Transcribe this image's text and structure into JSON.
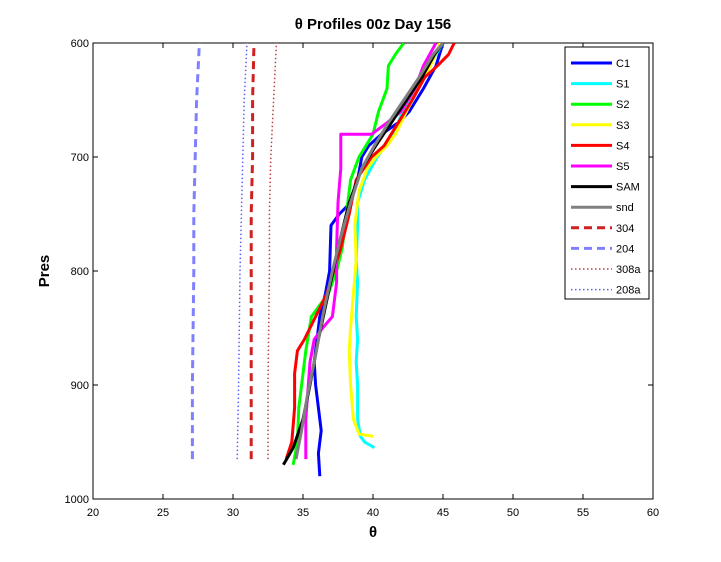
{
  "chart_data": {
    "type": "line",
    "title": "θ Profiles 00z Day 156",
    "xlabel": "θ",
    "ylabel": "Pres",
    "xlim": [
      20,
      60
    ],
    "ylim": [
      1000,
      600
    ],
    "y_reversed": true,
    "x_ticks": [
      20,
      25,
      30,
      35,
      40,
      45,
      50,
      55,
      60
    ],
    "y_ticks": [
      600,
      700,
      800,
      900,
      1000
    ],
    "grid": false,
    "legend_position": "top-right",
    "series": [
      {
        "name": "C1",
        "color": "#0000ff",
        "style": "solid",
        "x": [
          36.2,
          36.1,
          36.3,
          35.9,
          35.8,
          36.0,
          36.2,
          36.6,
          36.9,
          37.0,
          37.6,
          38.4,
          38.9,
          39.2,
          39.7,
          40.6,
          41.8,
          42.6,
          43.6,
          44.5,
          45.0
        ],
        "y": [
          980,
          960,
          940,
          900,
          880,
          860,
          840,
          820,
          800,
          760,
          750,
          740,
          720,
          700,
          690,
          680,
          670,
          660,
          640,
          620,
          600
        ]
      },
      {
        "name": "S1",
        "color": "#00ffff",
        "style": "solid",
        "x": [
          40.1,
          39.4,
          39.1,
          38.9,
          38.9,
          38.8,
          38.9,
          38.8,
          38.9,
          38.8,
          38.9,
          38.9,
          39.4,
          40.3,
          41.5,
          42.1,
          43.0,
          44.0,
          45.0
        ],
        "y": [
          955,
          950,
          945,
          930,
          900,
          880,
          860,
          840,
          810,
          790,
          760,
          740,
          720,
          700,
          680,
          660,
          640,
          620,
          600
        ]
      },
      {
        "name": "S2",
        "color": "#00ff00",
        "style": "solid",
        "x": [
          34.3,
          34.6,
          34.7,
          34.9,
          35.2,
          35.6,
          36.2,
          36.8,
          37.4,
          37.8,
          38.1,
          38.4,
          39.0,
          40.0,
          40.4,
          41.0,
          41.1,
          41.6,
          42.2
        ],
        "y": [
          970,
          950,
          920,
          900,
          870,
          840,
          830,
          820,
          800,
          780,
          750,
          720,
          700,
          680,
          660,
          640,
          620,
          610,
          600
        ]
      },
      {
        "name": "S3",
        "color": "#ffff00",
        "style": "solid",
        "x": [
          40.0,
          39.0,
          38.6,
          38.4,
          38.3,
          38.4,
          38.6,
          38.8,
          38.7,
          39.0,
          39.6,
          40.2,
          41.0,
          41.6,
          42.4,
          43.2,
          44.1,
          44.8
        ],
        "y": [
          945,
          943,
          930,
          900,
          870,
          850,
          820,
          790,
          760,
          730,
          710,
          700,
          690,
          680,
          660,
          640,
          620,
          600
        ]
      },
      {
        "name": "S4",
        "color": "#ff0000",
        "style": "solid",
        "x": [
          33.8,
          34.2,
          34.4,
          34.4,
          34.6,
          35.1,
          35.9,
          36.7,
          37.2,
          37.7,
          38.3,
          38.8,
          39.9,
          40.8,
          41.8,
          42.8,
          43.7,
          44.6,
          45.4,
          45.8
        ],
        "y": [
          965,
          950,
          920,
          890,
          870,
          860,
          840,
          820,
          800,
          780,
          750,
          720,
          700,
          690,
          670,
          650,
          630,
          620,
          610,
          600
        ]
      },
      {
        "name": "S5",
        "color": "#ff00ff",
        "style": "solid",
        "x": [
          35.2,
          35.2,
          35.5,
          35.8,
          36.4,
          37.1,
          37.4,
          37.4,
          37.5,
          37.7,
          37.7,
          38.3,
          39.9,
          41.0,
          42.0,
          43.0,
          43.6,
          44.5
        ],
        "y": [
          965,
          930,
          880,
          860,
          850,
          840,
          810,
          780,
          740,
          710,
          680,
          680,
          680,
          670,
          660,
          640,
          620,
          600
        ]
      },
      {
        "name": "SAM",
        "color": "#000000",
        "style": "solid",
        "x": [
          33.6,
          34.3,
          35.0,
          35.5,
          36.1,
          36.8,
          37.5,
          38.3,
          39.2,
          40.2,
          41.3,
          42.4,
          43.5,
          44.4,
          45.0
        ],
        "y": [
          970,
          955,
          930,
          900,
          860,
          820,
          780,
          740,
          710,
          690,
          670,
          650,
          630,
          610,
          600
        ]
      },
      {
        "name": "snd",
        "color": "#808080",
        "style": "solid",
        "x": [
          34.5,
          34.9,
          35.3,
          35.8,
          36.4,
          37.1,
          37.7,
          38.4,
          39.2,
          40.1,
          41.1,
          42.2,
          43.3,
          44.3,
          45.0
        ],
        "y": [
          965,
          940,
          910,
          880,
          840,
          800,
          770,
          740,
          710,
          690,
          670,
          650,
          630,
          610,
          600
        ]
      },
      {
        "name": "304",
        "color": "#d02020",
        "style": "dashed",
        "x": [
          31.3,
          31.3,
          31.3,
          31.3,
          31.4,
          31.4,
          31.5
        ],
        "y": [
          965,
          900,
          800,
          750,
          700,
          650,
          600
        ]
      },
      {
        "name": "204",
        "color": "#8080ff",
        "style": "dashed",
        "x": [
          27.1,
          27.1,
          27.2,
          27.2,
          27.3,
          27.4,
          27.6
        ],
        "y": [
          965,
          900,
          800,
          750,
          700,
          650,
          600
        ]
      },
      {
        "name": "308a",
        "color": "#c04040",
        "style": "dotted",
        "x": [
          32.5,
          32.5,
          32.6,
          32.6,
          32.7,
          32.9,
          33.1
        ],
        "y": [
          965,
          900,
          800,
          750,
          700,
          650,
          600
        ]
      },
      {
        "name": "208a",
        "color": "#6060ff",
        "style": "dotted",
        "x": [
          30.3,
          30.4,
          30.5,
          30.6,
          30.7,
          30.8,
          31.0
        ],
        "y": [
          965,
          900,
          800,
          750,
          700,
          650,
          600
        ]
      }
    ]
  }
}
